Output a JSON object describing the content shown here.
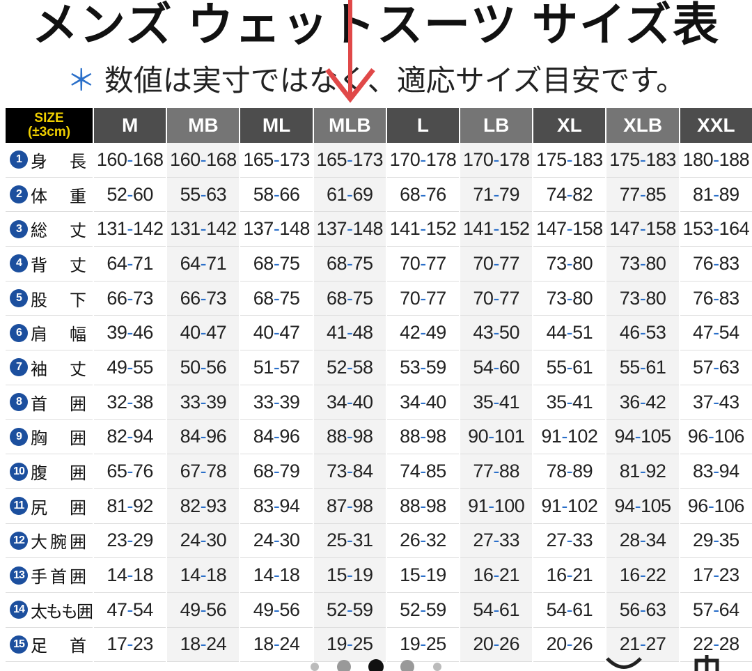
{
  "header": {
    "title": "メンズ ウェットスーツ サイズ表",
    "note_mark": "＊",
    "note": "数値は実寸ではなく、適応サイズ目安です。"
  },
  "table": {
    "corner": {
      "line1": "SIZE",
      "line2": "(±3cm)"
    },
    "sizes": [
      "M",
      "MB",
      "ML",
      "MLB",
      "L",
      "LB",
      "XL",
      "XLB",
      "XXL"
    ],
    "rows": [
      {
        "num": "1",
        "label": "身長",
        "values": [
          "160-168",
          "160-168",
          "165-173",
          "165-173",
          "170-178",
          "170-178",
          "175-183",
          "175-183",
          "180-188"
        ]
      },
      {
        "num": "2",
        "label": "体重",
        "values": [
          "52-60",
          "55-63",
          "58-66",
          "61-69",
          "68-76",
          "71-79",
          "74-82",
          "77-85",
          "81-89"
        ]
      },
      {
        "num": "3",
        "label": "総丈",
        "values": [
          "131-142",
          "131-142",
          "137-148",
          "137-148",
          "141-152",
          "141-152",
          "147-158",
          "147-158",
          "153-164"
        ]
      },
      {
        "num": "4",
        "label": "背丈",
        "values": [
          "64-71",
          "64-71",
          "68-75",
          "68-75",
          "70-77",
          "70-77",
          "73-80",
          "73-80",
          "76-83"
        ]
      },
      {
        "num": "5",
        "label": "股下",
        "values": [
          "66-73",
          "66-73",
          "68-75",
          "68-75",
          "70-77",
          "70-77",
          "73-80",
          "73-80",
          "76-83"
        ]
      },
      {
        "num": "6",
        "label": "肩幅",
        "values": [
          "39-46",
          "40-47",
          "40-47",
          "41-48",
          "42-49",
          "43-50",
          "44-51",
          "46-53",
          "47-54"
        ]
      },
      {
        "num": "7",
        "label": "袖丈",
        "values": [
          "49-55",
          "50-56",
          "51-57",
          "52-58",
          "53-59",
          "54-60",
          "55-61",
          "55-61",
          "57-63"
        ]
      },
      {
        "num": "8",
        "label": "首囲",
        "values": [
          "32-38",
          "33-39",
          "33-39",
          "34-40",
          "34-40",
          "35-41",
          "35-41",
          "36-42",
          "37-43"
        ]
      },
      {
        "num": "9",
        "label": "胸囲",
        "values": [
          "82-94",
          "84-96",
          "84-96",
          "88-98",
          "88-98",
          "90-101",
          "91-102",
          "94-105",
          "96-106"
        ]
      },
      {
        "num": "10",
        "label": "腹囲",
        "values": [
          "65-76",
          "67-78",
          "68-79",
          "73-84",
          "74-85",
          "77-88",
          "78-89",
          "81-92",
          "83-94"
        ]
      },
      {
        "num": "11",
        "label": "尻囲",
        "values": [
          "81-92",
          "82-93",
          "83-94",
          "87-98",
          "88-98",
          "91-100",
          "91-102",
          "94-105",
          "96-106"
        ]
      },
      {
        "num": "12",
        "label": "大腕囲",
        "values": [
          "23-29",
          "24-30",
          "24-30",
          "25-31",
          "26-32",
          "27-33",
          "27-33",
          "28-34",
          "29-35"
        ]
      },
      {
        "num": "13",
        "label": "手首囲",
        "values": [
          "14-18",
          "14-18",
          "14-18",
          "15-19",
          "15-19",
          "16-21",
          "16-21",
          "16-22",
          "17-23"
        ]
      },
      {
        "num": "14",
        "label": "太もも囲",
        "values": [
          "47-54",
          "49-56",
          "49-56",
          "52-59",
          "52-59",
          "54-61",
          "54-61",
          "56-63",
          "57-64"
        ]
      },
      {
        "num": "15",
        "label": "足首",
        "values": [
          "17-23",
          "18-24",
          "18-24",
          "19-25",
          "19-25",
          "20-26",
          "20-26",
          "21-27",
          "22-28"
        ]
      }
    ]
  }
}
